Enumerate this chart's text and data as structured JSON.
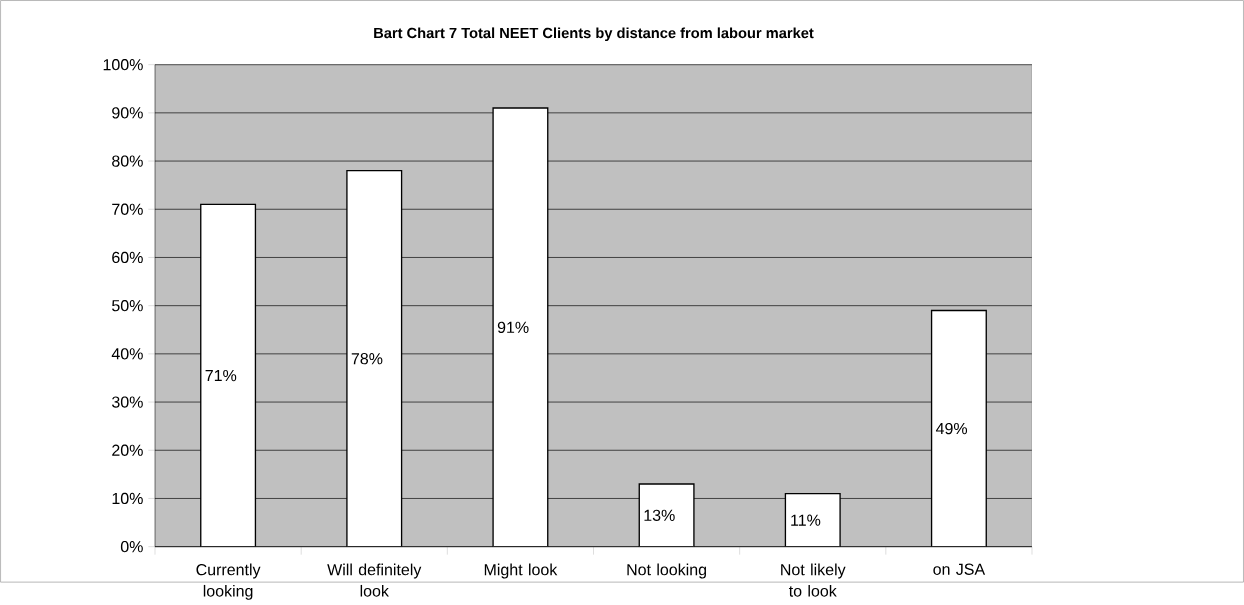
{
  "chart_data": {
    "type": "bar",
    "title": "Bart Chart 7    Total NEET Clients by distance from labour market",
    "categories": [
      "Currently looking",
      "Will definitely look",
      "Might look",
      "Not looking",
      "Not likely to look",
      "on JSA"
    ],
    "values": [
      71,
      78,
      91,
      13,
      11,
      49
    ],
    "value_labels": [
      "71%",
      "78%",
      "91%",
      "13%",
      "11%",
      "49%"
    ],
    "color": "#ffffff",
    "ylim": [
      0,
      100
    ],
    "yticks": [
      {
        "value": 0,
        "label": "0%"
      },
      {
        "value": 10,
        "label": "10%"
      },
      {
        "value": 20,
        "label": "20%"
      },
      {
        "value": 30,
        "label": "30%"
      },
      {
        "value": 40,
        "label": "40%"
      },
      {
        "value": 50,
        "label": "50%"
      },
      {
        "value": 60,
        "label": "60%"
      },
      {
        "value": 70,
        "label": "70%"
      },
      {
        "value": 80,
        "label": "80%"
      },
      {
        "value": 90,
        "label": "90%"
      },
      {
        "value": 100,
        "label": "100%"
      }
    ],
    "grid": "y"
  }
}
